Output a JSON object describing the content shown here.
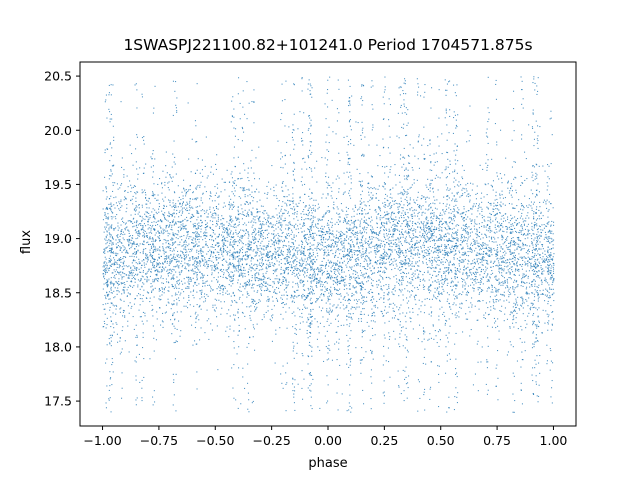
{
  "chart_data": {
    "type": "scatter",
    "title": "1SWASPJ221100.82+101241.0 Period 1704571.875s",
    "xlabel": "phase",
    "ylabel": "flux",
    "xlim": [
      -1.1,
      1.1
    ],
    "ylim": [
      17.27,
      20.63
    ],
    "x_ticks": [
      -1.0,
      -0.75,
      -0.5,
      -0.25,
      0.0,
      0.25,
      0.5,
      0.75,
      1.0
    ],
    "x_tick_labels": [
      "−1.00",
      "−0.75",
      "−0.50",
      "−0.25",
      "0.00",
      "0.25",
      "0.50",
      "0.75",
      "1.00"
    ],
    "y_ticks": [
      17.5,
      18.0,
      18.5,
      19.0,
      19.5,
      20.0,
      20.5
    ],
    "y_tick_labels": [
      "17.5",
      "18.0",
      "18.5",
      "19.0",
      "19.5",
      "20.0",
      "20.5"
    ],
    "grid": false,
    "legend": "none",
    "marker_color": "#1f77b4",
    "series": [
      {
        "x_range": [
          -1.0,
          1.0
        ],
        "y_range": [
          17.4,
          20.5
        ],
        "point_count": 9000,
        "core_flux": 18.9,
        "core_spread": 0.3,
        "core_profile": [
          {
            "phase": -1.0,
            "flux": 18.82
          },
          {
            "phase": -0.75,
            "flux": 18.93
          },
          {
            "phase": -0.5,
            "flux": 18.92
          },
          {
            "phase": -0.25,
            "flux": 18.87
          },
          {
            "phase": 0.0,
            "flux": 18.8
          },
          {
            "phase": 0.25,
            "flux": 18.93
          },
          {
            "phase": 0.5,
            "flux": 18.95
          },
          {
            "phase": 0.75,
            "flux": 18.88
          },
          {
            "phase": 1.0,
            "flux": 18.78
          }
        ]
      }
    ]
  }
}
